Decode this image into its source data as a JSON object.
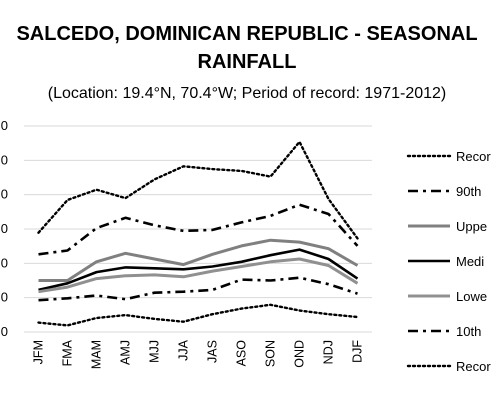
{
  "chart_data": {
    "type": "line",
    "title": [
      "SALCEDO, DOMINICAN REPUBLIC - SEASONAL",
      "RAINFALL"
    ],
    "subtitle": "(Location: 19.4°N, 70.4°W; Period of record: 1971-2012)",
    "categories": [
      "JFM",
      "FMA",
      "MAM",
      "AMJ",
      "MJJ",
      "JJA",
      "JAS",
      "ASO",
      "SON",
      "OND",
      "NDJ",
      "DJF"
    ],
    "ytick_labels": [
      "0",
      "0",
      "0",
      "0",
      "0",
      "0",
      "0"
    ],
    "series": [
      {
        "name": "Record High",
        "legend_label": "Recor",
        "style": "dotted",
        "color": "#000000",
        "values": [
          930,
          1105,
          1160,
          1115,
          1215,
          1285,
          1270,
          1260,
          1230,
          1415,
          1110,
          900
        ]
      },
      {
        "name": "90th",
        "legend_label": "90th",
        "style": "dashdot",
        "color": "#000000",
        "values": [
          815,
          835,
          955,
          1010,
          970,
          940,
          945,
          985,
          1020,
          1080,
          1030,
          860
        ]
      },
      {
        "name": "Upper",
        "legend_label": "Uppe",
        "style": "solid",
        "color": "#808080",
        "values": [
          675,
          675,
          775,
          820,
          790,
          760,
          815,
          860,
          890,
          880,
          845,
          755
        ]
      },
      {
        "name": "Median",
        "legend_label": "Medi",
        "style": "solid",
        "color": "#000000",
        "values": [
          625,
          660,
          720,
          745,
          740,
          735,
          750,
          775,
          810,
          840,
          790,
          685
        ]
      },
      {
        "name": "Lower",
        "legend_label": "Lowe",
        "style": "solid",
        "color": "#909090",
        "values": [
          615,
          640,
          685,
          700,
          705,
          695,
          725,
          750,
          775,
          790,
          755,
          660
        ]
      },
      {
        "name": "10th",
        "legend_label": "10th",
        "style": "dashdot",
        "color": "#000000",
        "values": [
          570,
          580,
          595,
          575,
          610,
          615,
          625,
          680,
          675,
          690,
          655,
          605
        ]
      },
      {
        "name": "Record Low",
        "legend_label": "Recor",
        "style": "dotted",
        "color": "#000000",
        "values": [
          450,
          435,
          475,
          490,
          470,
          455,
          495,
          525,
          545,
          515,
          495,
          480
        ]
      }
    ],
    "ylim": [
      400,
      1500
    ],
    "grid": true,
    "legend_position": "right"
  }
}
